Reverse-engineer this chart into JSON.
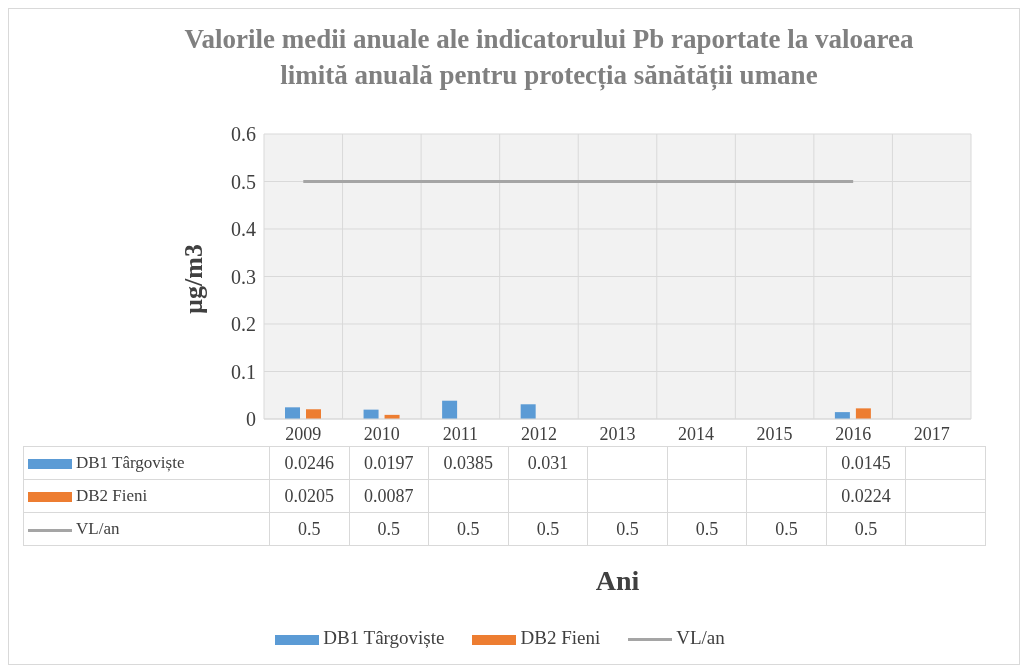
{
  "chart_data": {
    "type": "bar",
    "title": "Valorile medii anuale ale indicatorului Pb raportate la valoarea limită anuală pentru protecția sănătății umane",
    "xlabel": "Ani",
    "ylabel": "µg/m3",
    "categories": [
      "2009",
      "2010",
      "2011",
      "2012",
      "2013",
      "2014",
      "2015",
      "2016",
      "2017"
    ],
    "series": [
      {
        "name": "DB1 Târgoviște",
        "color": "#5b9bd5",
        "values": [
          0.0246,
          0.0197,
          0.0385,
          0.031,
          null,
          null,
          null,
          0.0145,
          null
        ]
      },
      {
        "name": "DB2 Fieni",
        "color": "#ed7d31",
        "values": [
          0.0205,
          0.0087,
          null,
          null,
          null,
          null,
          null,
          0.0224,
          null
        ]
      },
      {
        "name": "VL/an",
        "type": "line",
        "color": "#a5a5a5",
        "values": [
          0.5,
          0.5,
          0.5,
          0.5,
          0.5,
          0.5,
          0.5,
          0.5,
          null
        ]
      }
    ],
    "ylim": [
      0,
      0.6
    ],
    "yticks": [
      0,
      0.1,
      0.2,
      0.3,
      0.4,
      0.5,
      0.6
    ],
    "grid": true,
    "legend": "bottom",
    "data_labels": true,
    "marker": "none"
  }
}
